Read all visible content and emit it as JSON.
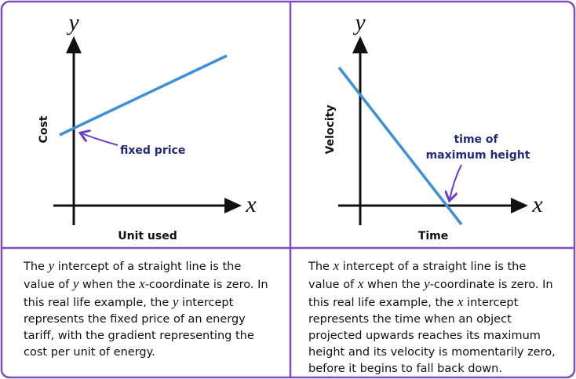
{
  "panels": [
    {
      "y_axis": "y",
      "x_axis": "x",
      "y_label": "Cost",
      "x_label": "Unit used",
      "annotation": [
        "fixed price"
      ],
      "description": [
        "The ",
        "y",
        " intercept of a straight line is the value of ",
        "y",
        " when the ",
        "x",
        "-coordinate is zero. In this real life example, the ",
        "y",
        " intercept represents the fixed price of an energy tariff, with the gradient representing the cost per unit of energy."
      ]
    },
    {
      "y_axis": "y",
      "x_axis": "x",
      "y_label": "Velocity",
      "x_label": "Time",
      "annotation": [
        "time of",
        "maximum height"
      ],
      "description": [
        "The ",
        "x",
        " intercept of a straight line is the value of ",
        "x",
        " when the ",
        "y",
        "-coordinate is zero. In this real life example, the ",
        "x",
        " intercept represents the time when an object projected upwards reaches its maximum height and its velocity is momentarily zero, before it begins to fall back down."
      ]
    }
  ]
}
